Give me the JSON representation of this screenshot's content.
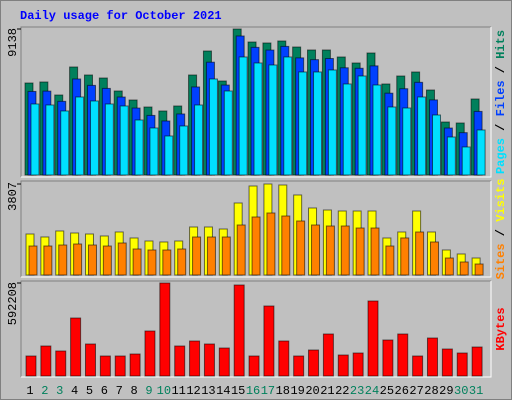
{
  "chart_data": [
    {
      "type": "bar",
      "title": "Daily usage for October 2021",
      "categories": [
        "1",
        "2",
        "3",
        "4",
        "5",
        "6",
        "7",
        "8",
        "9",
        "10",
        "11",
        "12",
        "13",
        "14",
        "15",
        "16",
        "17",
        "18",
        "19",
        "20",
        "21",
        "22",
        "23",
        "24",
        "25",
        "26",
        "27",
        "28",
        "29",
        "30",
        "31"
      ],
      "category_colors": [
        "#000000",
        "#00805c",
        "#00805c",
        "#000000",
        "#000000",
        "#000000",
        "#000000",
        "#000000",
        "#00805c",
        "#00805c",
        "#000000",
        "#000000",
        "#000000",
        "#000000",
        "#000000",
        "#00805c",
        "#00805c",
        "#000000",
        "#000000",
        "#000000",
        "#000000",
        "#000000",
        "#00805c",
        "#00805c",
        "#000000",
        "#000000",
        "#000000",
        "#000000",
        "#000000",
        "#00805c",
        "#00805c"
      ],
      "ylim": [
        0,
        9138
      ],
      "yticks": [
        9138
      ],
      "series": [
        {
          "name": "Hits",
          "color": "#00805c",
          "values": [
            5758,
            5821,
            5007,
            6760,
            6259,
            6071,
            5258,
            4694,
            4256,
            4006,
            4319,
            6259,
            7761,
            5883,
            9138,
            8324,
            8262,
            8387,
            8011,
            7824,
            7824,
            7386,
            7010,
            7636,
            5696,
            6196,
            6447,
            5320,
            3317,
            3255,
            4757
          ]
        },
        {
          "name": "Files",
          "color": "#0040ff",
          "values": [
            5230,
            5250,
            4610,
            6010,
            5610,
            5420,
            4880,
            4190,
            3730,
            3380,
            3820,
            5510,
            7060,
            5630,
            8700,
            7990,
            7820,
            8050,
            7330,
            7220,
            7290,
            6710,
            6680,
            6830,
            5120,
            5400,
            5800,
            4700,
            2940,
            2650,
            3980
          ]
        },
        {
          "name": "Pages",
          "color": "#00e0ff",
          "values": [
            4444,
            4381,
            4006,
            4882,
            4632,
            4444,
            4319,
            3442,
            2942,
            2441,
            3067,
            4381,
            6009,
            5257,
            7386,
            7010,
            6885,
            7386,
            6447,
            6447,
            6572,
            5696,
            6196,
            5633,
            4256,
            4193,
            4882,
            3755,
            2378,
            1753,
            2817
          ]
        }
      ]
    },
    {
      "type": "bar",
      "ylim": [
        0,
        3807
      ],
      "yticks": [
        3807
      ],
      "series": [
        {
          "name": "Visits",
          "color": "#ffff00",
          "values": [
            1715,
            1590,
            1841,
            1757,
            1715,
            1632,
            1799,
            1548,
            1422,
            1381,
            1422,
            2008,
            2008,
            1924,
            3012,
            3723,
            3807,
            3765,
            3347,
            2803,
            2719,
            2677,
            2677,
            2677,
            1548,
            1799,
            2677,
            1799,
            1046,
            879,
            711
          ]
        },
        {
          "name": "Sites",
          "color": "#ff8000",
          "values": [
            1213,
            1213,
            1255,
            1297,
            1255,
            1213,
            1339,
            1088,
            1046,
            1046,
            1088,
            1590,
            1590,
            1590,
            2092,
            2427,
            2594,
            2468,
            2259,
            2092,
            2050,
            2050,
            1966,
            1966,
            1213,
            1550,
            1799,
            1381,
            711,
            544,
            460
          ]
        }
      ]
    },
    {
      "type": "bar",
      "ylim": [
        0,
        592208
      ],
      "yticks": [
        592208
      ],
      "series": [
        {
          "name": "KBytes",
          "color": "#ff0000",
          "values": [
            127357,
            191035,
            159196,
            369334,
            203771,
            127357,
            127357,
            140092,
            286552,
            592208,
            191035,
            222873,
            203771,
            178298,
            579473,
            127357,
            445749,
            222873,
            127357,
            165563,
            267449,
            133724,
            146460,
            477587,
            229242,
            267449,
            127357,
            241975,
            171931,
            146460,
            184665
          ]
        }
      ]
    }
  ]
}
